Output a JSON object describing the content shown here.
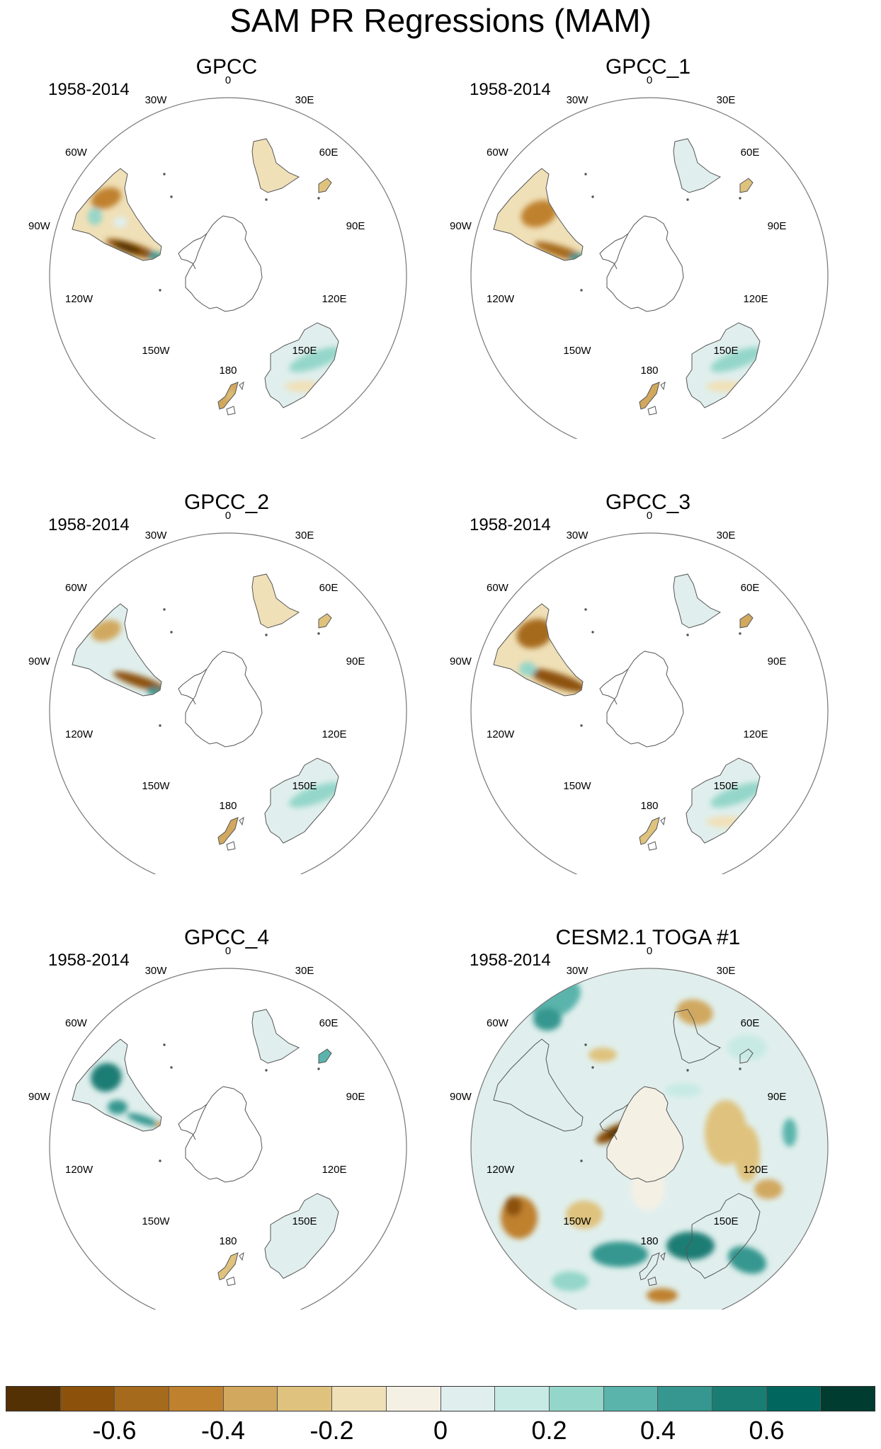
{
  "title": "SAM PR Regressions (MAM)",
  "panels": [
    {
      "title": "GPCC",
      "period": "1958-2014",
      "field": "obs_a"
    },
    {
      "title": "GPCC_1",
      "period": "1958-2014",
      "field": "obs_b"
    },
    {
      "title": "GPCC_2",
      "period": "1958-2014",
      "field": "obs_c"
    },
    {
      "title": "GPCC_3",
      "period": "1958-2014",
      "field": "obs_d"
    },
    {
      "title": "GPCC_4",
      "period": "1958-2014",
      "field": "obs_e"
    },
    {
      "title": "CESM2.1 TOGA #1",
      "period": "1958-2014",
      "field": "model"
    }
  ],
  "longitude_labels": [
    "0",
    "30E",
    "60E",
    "90E",
    "120E",
    "150E",
    "180",
    "150W",
    "120W",
    "90W",
    "60W",
    "30W"
  ],
  "colorbar": {
    "colors": [
      "#543005",
      "#8c510a",
      "#a66a1c",
      "#bf812d",
      "#d1a85e",
      "#dfc27d",
      "#f0e0b8",
      "#f5f0e4",
      "#e0efed",
      "#c7eae5",
      "#94d6c9",
      "#5ab4ac",
      "#35978f",
      "#1a7d74",
      "#01665e",
      "#003c30"
    ],
    "labels": [
      "-0.6",
      "-0.4",
      "-0.2",
      "0",
      "0.2",
      "0.4",
      "0.6"
    ]
  }
}
